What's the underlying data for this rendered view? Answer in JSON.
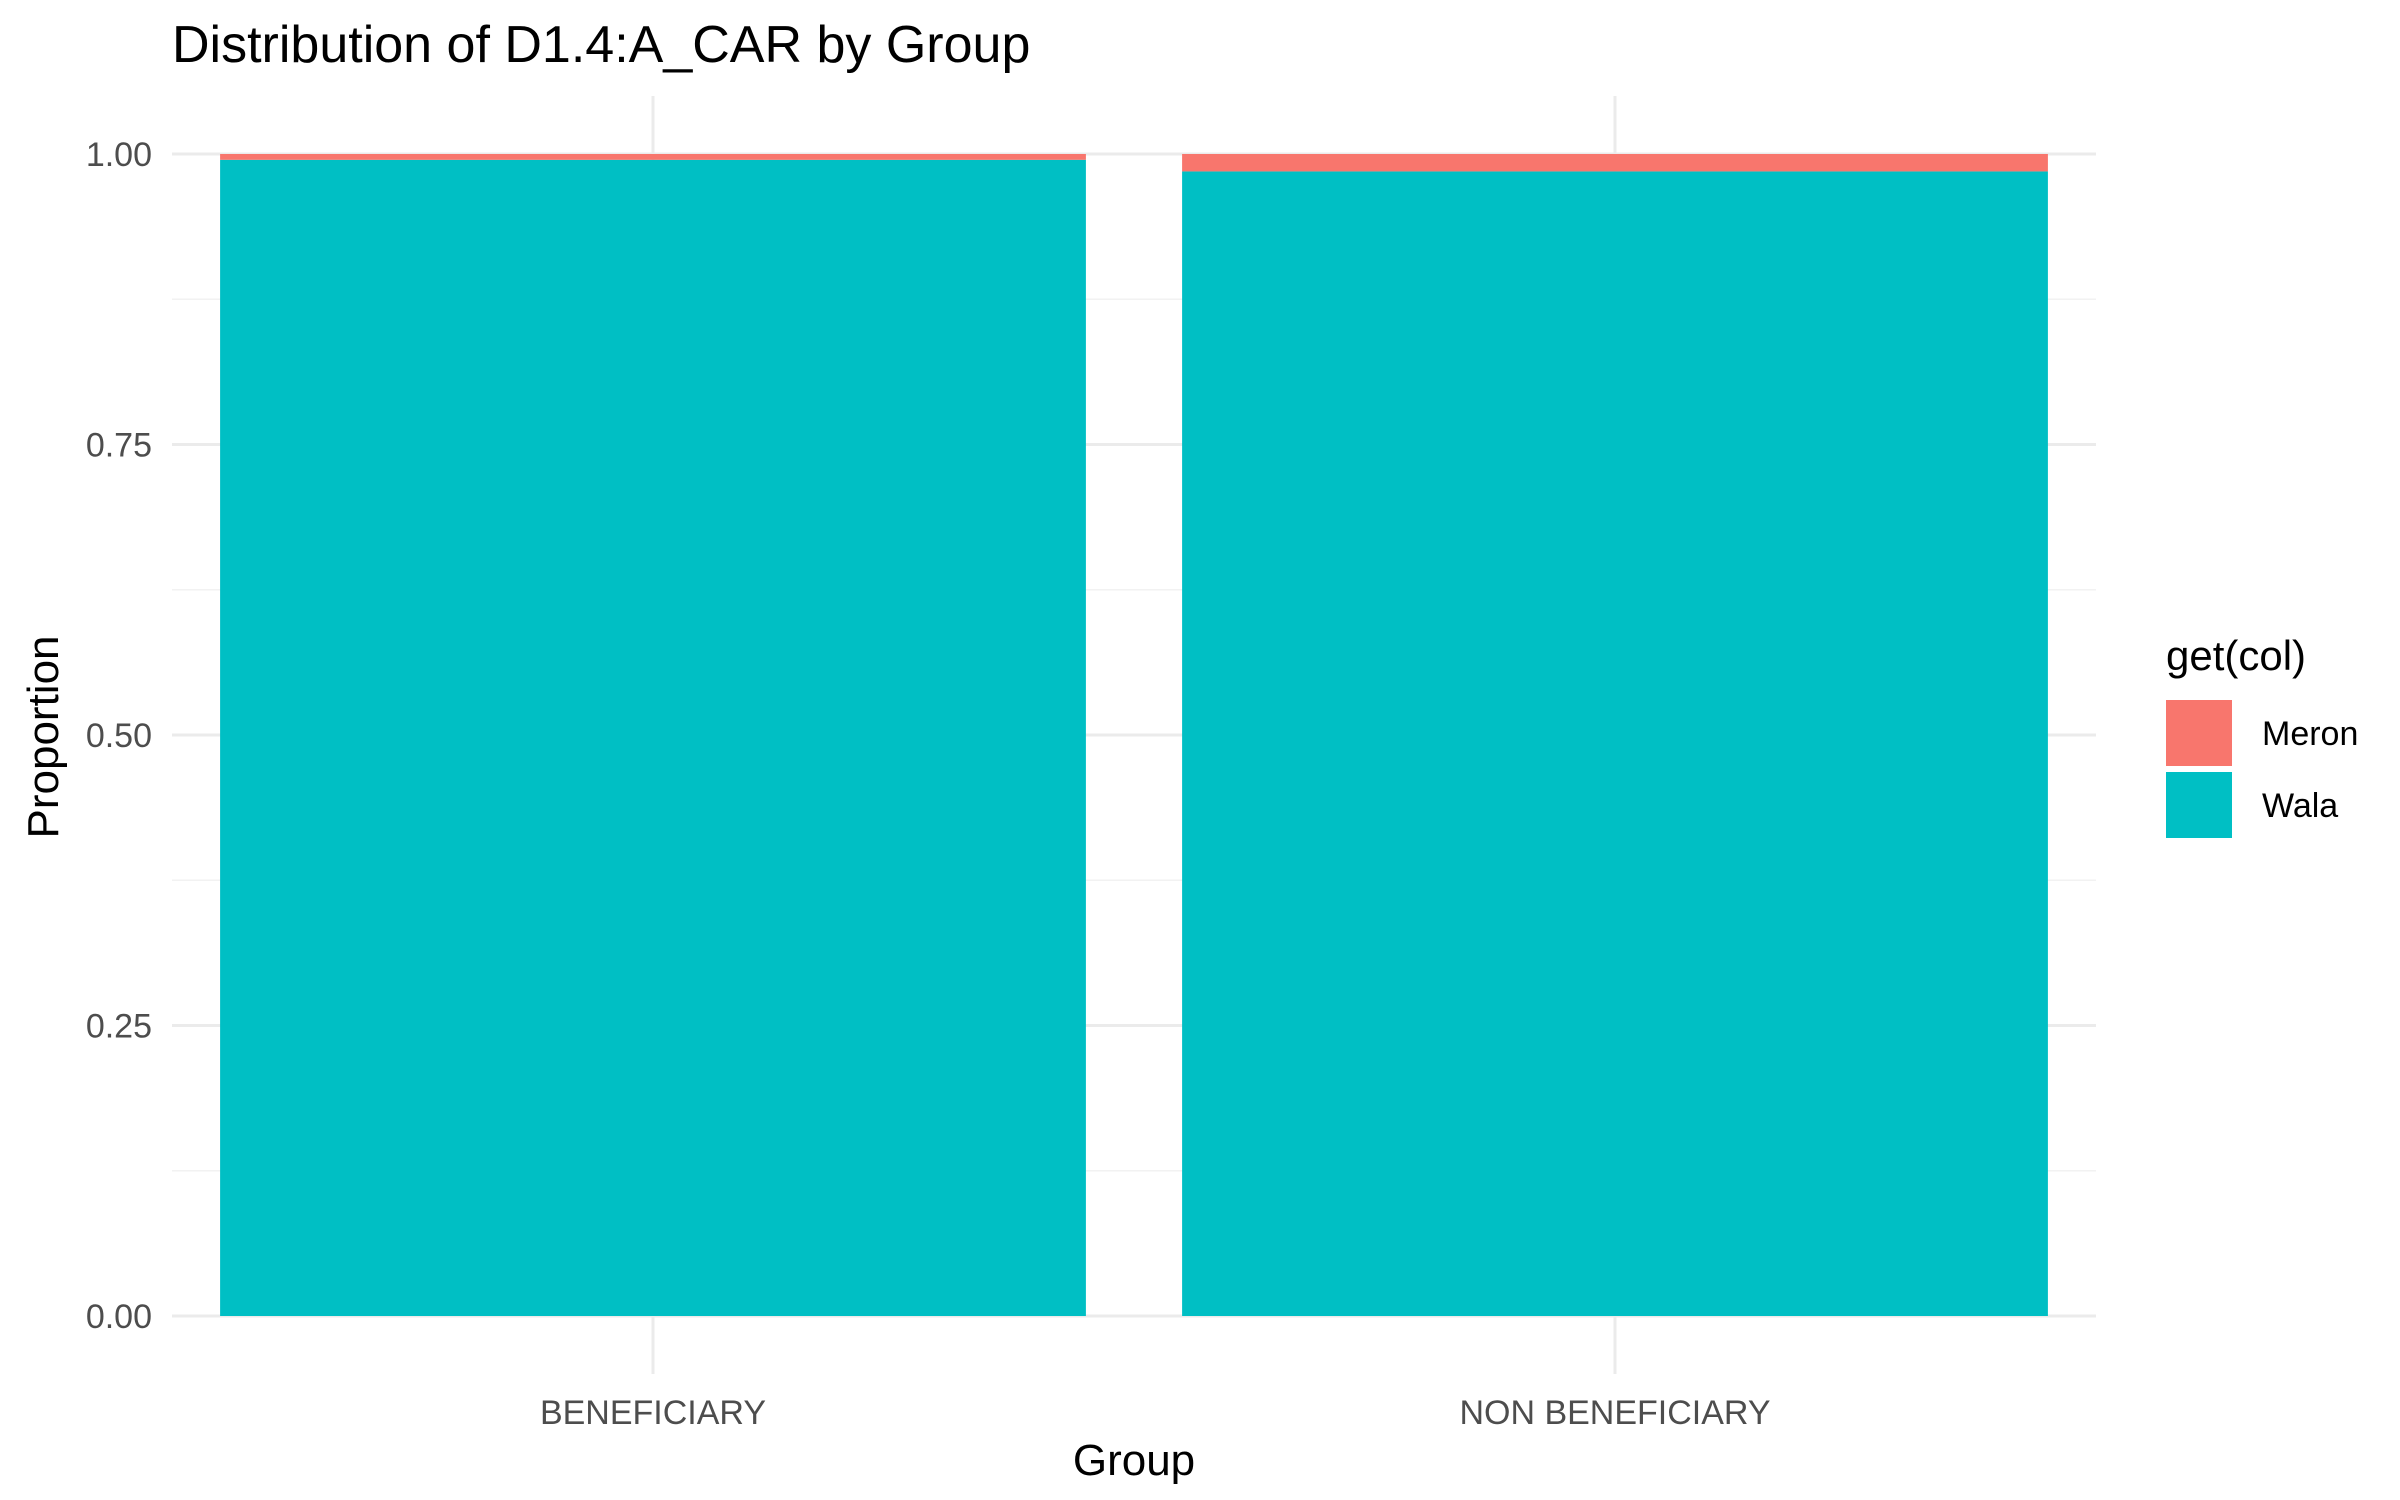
{
  "chart_data": {
    "type": "bar",
    "stacked": true,
    "title": "Distribution of D1.4:A_CAR by Group",
    "xlabel": "Group",
    "ylabel": "Proportion",
    "categories": [
      "BENEFICIARY",
      "NON BENEFICIARY"
    ],
    "series": [
      {
        "name": "Wala",
        "values": [
          0.995,
          0.985
        ],
        "color": "#00BFC4"
      },
      {
        "name": "Meron",
        "values": [
          0.005,
          0.015
        ],
        "color": "#F8766D"
      }
    ],
    "ylim": [
      0,
      1
    ],
    "yticks": [
      "0.00",
      "0.25",
      "0.50",
      "0.75",
      "1.00"
    ],
    "ytick_values": [
      0,
      0.25,
      0.5,
      0.75,
      1
    ],
    "legend": {
      "title": "get(col)",
      "entries": [
        "Meron",
        "Wala"
      ],
      "placement": "right"
    },
    "grid": true
  }
}
